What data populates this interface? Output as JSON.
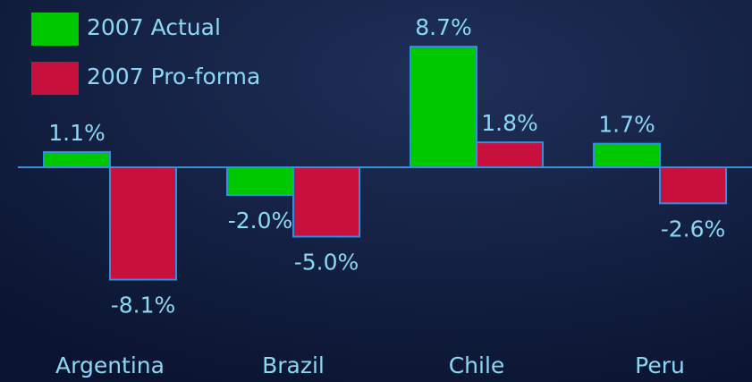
{
  "chart_data": {
    "type": "bar",
    "categories": [
      "Argentina",
      "Brazil",
      "Chile",
      "Peru"
    ],
    "series": [
      {
        "name": "2007 Actual",
        "color": "#00c800",
        "values": [
          1.1,
          -2.0,
          8.7,
          1.7
        ],
        "value_labels": [
          "1.1%",
          "-2.0%",
          "8.7%",
          "1.7%"
        ]
      },
      {
        "name": "2007 Pro-forma",
        "color": "#c8103c",
        "values": [
          -8.1,
          -5.0,
          1.8,
          -2.6
        ],
        "value_labels": [
          "-8.1%",
          "-5.0%",
          "1.8%",
          "-2.6%"
        ]
      }
    ],
    "legend": "upper left"
  }
}
